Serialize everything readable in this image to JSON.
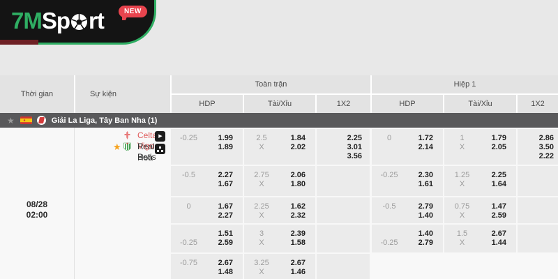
{
  "logo": {
    "brand_green": "7M",
    "brand_white_pre": "Sp",
    "brand_white_post": "rt",
    "badge": "NEW"
  },
  "icons": {
    "league_star": "★",
    "favorite_star": "★",
    "play": "▶"
  },
  "colors": {
    "brand_green": "#2fae63",
    "badge_red": "#e8444e",
    "league_bar": "#59595b",
    "home_team_red": "#e05a5a",
    "favorite_orange": "#f6a21d",
    "odds_cell_gray": "#ebebeb"
  },
  "table": {
    "headers": {
      "time": "Thời gian",
      "event": "Sự kiện",
      "full_match": "Toàn trận",
      "first_half": "Hiệp 1",
      "hdp": "HDP",
      "over_under": "Tài/Xỉu",
      "x12": "1X2"
    },
    "league": {
      "name": "Giải La Liga, Tây Ban Nha (1)"
    },
    "match": {
      "date": "08/28",
      "time": "02:00",
      "home": "Celta Vigo",
      "away": "Real Betis",
      "draw": "Hoà"
    },
    "odds_rows": [
      {
        "full": {
          "hdp": [
            [
              "-0.25",
              "1.99"
            ],
            [
              "",
              "1.89"
            ]
          ],
          "ou": [
            [
              "2.5",
              "1.84"
            ],
            [
              "X",
              "2.02"
            ]
          ],
          "x12": [
            "2.25",
            "3.01",
            "3.56"
          ]
        },
        "h1": {
          "hdp": [
            [
              "0",
              "1.72"
            ],
            [
              "",
              "2.14"
            ]
          ],
          "ou": [
            [
              "1",
              "1.79"
            ],
            [
              "X",
              "2.05"
            ]
          ],
          "x12": [
            "2.86",
            "3.50",
            "2.22"
          ]
        }
      },
      {
        "full": {
          "hdp": [
            [
              "-0.5",
              "2.27"
            ],
            [
              "",
              "1.67"
            ]
          ],
          "ou": [
            [
              "2.75",
              "2.06"
            ],
            [
              "X",
              "1.80"
            ]
          ],
          "x12": []
        },
        "h1": {
          "hdp": [
            [
              "-0.25",
              "2.30"
            ],
            [
              "",
              "1.61"
            ]
          ],
          "ou": [
            [
              "1.25",
              "2.25"
            ],
            [
              "X",
              "1.64"
            ]
          ],
          "x12": []
        }
      },
      {
        "full": {
          "hdp": [
            [
              "0",
              "1.67"
            ],
            [
              "",
              "2.27"
            ]
          ],
          "ou": [
            [
              "2.25",
              "1.62"
            ],
            [
              "X",
              "2.32"
            ]
          ],
          "x12": []
        },
        "h1": {
          "hdp": [
            [
              "-0.5",
              "2.79"
            ],
            [
              "",
              "1.40"
            ]
          ],
          "ou": [
            [
              "0.75",
              "1.47"
            ],
            [
              "X",
              "2.59"
            ]
          ],
          "x12": []
        }
      },
      {
        "full": {
          "hdp": [
            [
              "",
              "1.51"
            ],
            [
              "-0.25",
              "2.59"
            ]
          ],
          "ou": [
            [
              "3",
              "2.39"
            ],
            [
              "X",
              "1.58"
            ]
          ],
          "x12": []
        },
        "h1": {
          "hdp": [
            [
              "",
              "1.40"
            ],
            [
              "-0.25",
              "2.79"
            ]
          ],
          "ou": [
            [
              "1.5",
              "2.67"
            ],
            [
              "X",
              "1.44"
            ]
          ],
          "x12": []
        }
      },
      {
        "full": {
          "hdp": [
            [
              "-0.75",
              "2.67"
            ],
            [
              "",
              "1.48"
            ]
          ],
          "ou": [
            [
              "3.25",
              "2.67"
            ],
            [
              "X",
              "1.46"
            ]
          ],
          "x12": []
        },
        "h1": null
      }
    ]
  }
}
